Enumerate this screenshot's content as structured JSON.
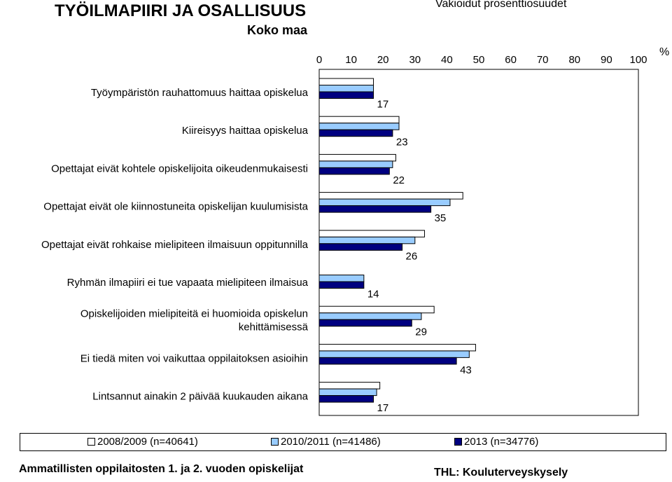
{
  "header": {
    "title": "TYÖILMAPIIRI JA OSALLISUUS",
    "subtitle": "Koko maa",
    "note": "Vakioidut prosenttiosuudet"
  },
  "chart_data": {
    "type": "bar",
    "orientation": "horizontal",
    "unit": "%",
    "xlim": [
      0,
      100
    ],
    "x_ticks": [
      0,
      10,
      20,
      30,
      40,
      50,
      60,
      70,
      80,
      90,
      100
    ],
    "categories": [
      [
        "Työympäristön rauhattomuus haittaa opiskelua"
      ],
      [
        "Kiireisyys haittaa opiskelua"
      ],
      [
        "Opettajat eivät kohtele opiskelijoita oikeudenmukaisesti"
      ],
      [
        "Opettajat eivät ole kiinnostuneita opiskelijan kuulumisista"
      ],
      [
        "Opettajat eivät rohkaise mielipiteen ilmaisuun oppitunnilla"
      ],
      [
        "Ryhmän ilmapiiri ei tue vapaata mielipiteen ilmaisua"
      ],
      [
        "Opiskelijoiden mielipiteitä ei huomioida opiskelun",
        "kehittämisessä"
      ],
      [
        "Ei tiedä miten voi vaikuttaa oppilaitoksen asioihin"
      ],
      [
        "Lintsannut ainakin 2 päivää kuukauden aikana"
      ]
    ],
    "series": [
      {
        "name": "2008/2009 (n=40641)",
        "color": "#ffffff",
        "values": [
          17,
          25,
          24,
          45,
          33,
          null,
          36,
          49,
          19
        ]
      },
      {
        "name": "2010/2011 (n=41486)",
        "color": "#99ccff",
        "values": [
          17,
          25,
          23,
          41,
          30,
          14,
          32,
          47,
          18
        ]
      },
      {
        "name": "2013 (n=34776)",
        "color": "#000080",
        "values": [
          17,
          23,
          22,
          35,
          26,
          14,
          29,
          43,
          17
        ]
      }
    ],
    "data_labels_series": "2013 (n=34776)",
    "grid": false,
    "legend_position": "bottom"
  },
  "footer": {
    "left": "Ammatillisten oppilaitosten 1. ja 2. vuoden opiskelijat",
    "right": "THL: Kouluterveyskysely"
  }
}
